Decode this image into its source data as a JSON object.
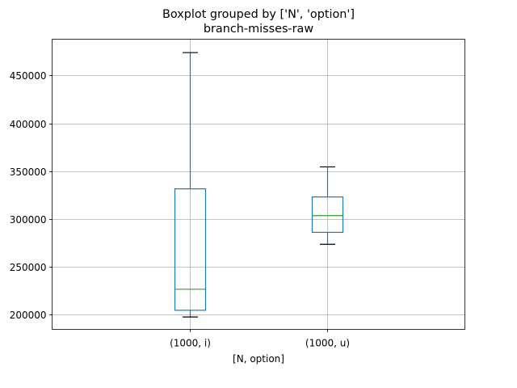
{
  "chart_data": {
    "type": "box",
    "title": "Boxplot grouped by ['N', 'option']",
    "subtitle": "branch-misses-raw",
    "xlabel": "[N, option]",
    "ylabel": "",
    "ylim": [
      184500,
      488000
    ],
    "yticks": [
      200000,
      250000,
      300000,
      350000,
      400000,
      450000
    ],
    "ytick_labels": [
      "200000",
      "250000",
      "300000",
      "350000",
      "400000",
      "450000"
    ],
    "grid": true,
    "categories": [
      "(1000, i)",
      "(1000, u)"
    ],
    "boxes": [
      {
        "label": "(1000, i)",
        "whisker_low": 197500,
        "q1": 204500,
        "median": 226500,
        "q3": 331500,
        "whisker_high": 474000
      },
      {
        "label": "(1000, u)",
        "whisker_low": 273500,
        "q1": 286000,
        "median": 303500,
        "q3": 323000,
        "whisker_high": 354500
      }
    ],
    "colors": {
      "box": "#1f77b4",
      "median": "#2ca02c",
      "cap": "#000000",
      "grid": "#b0b0b0"
    }
  }
}
